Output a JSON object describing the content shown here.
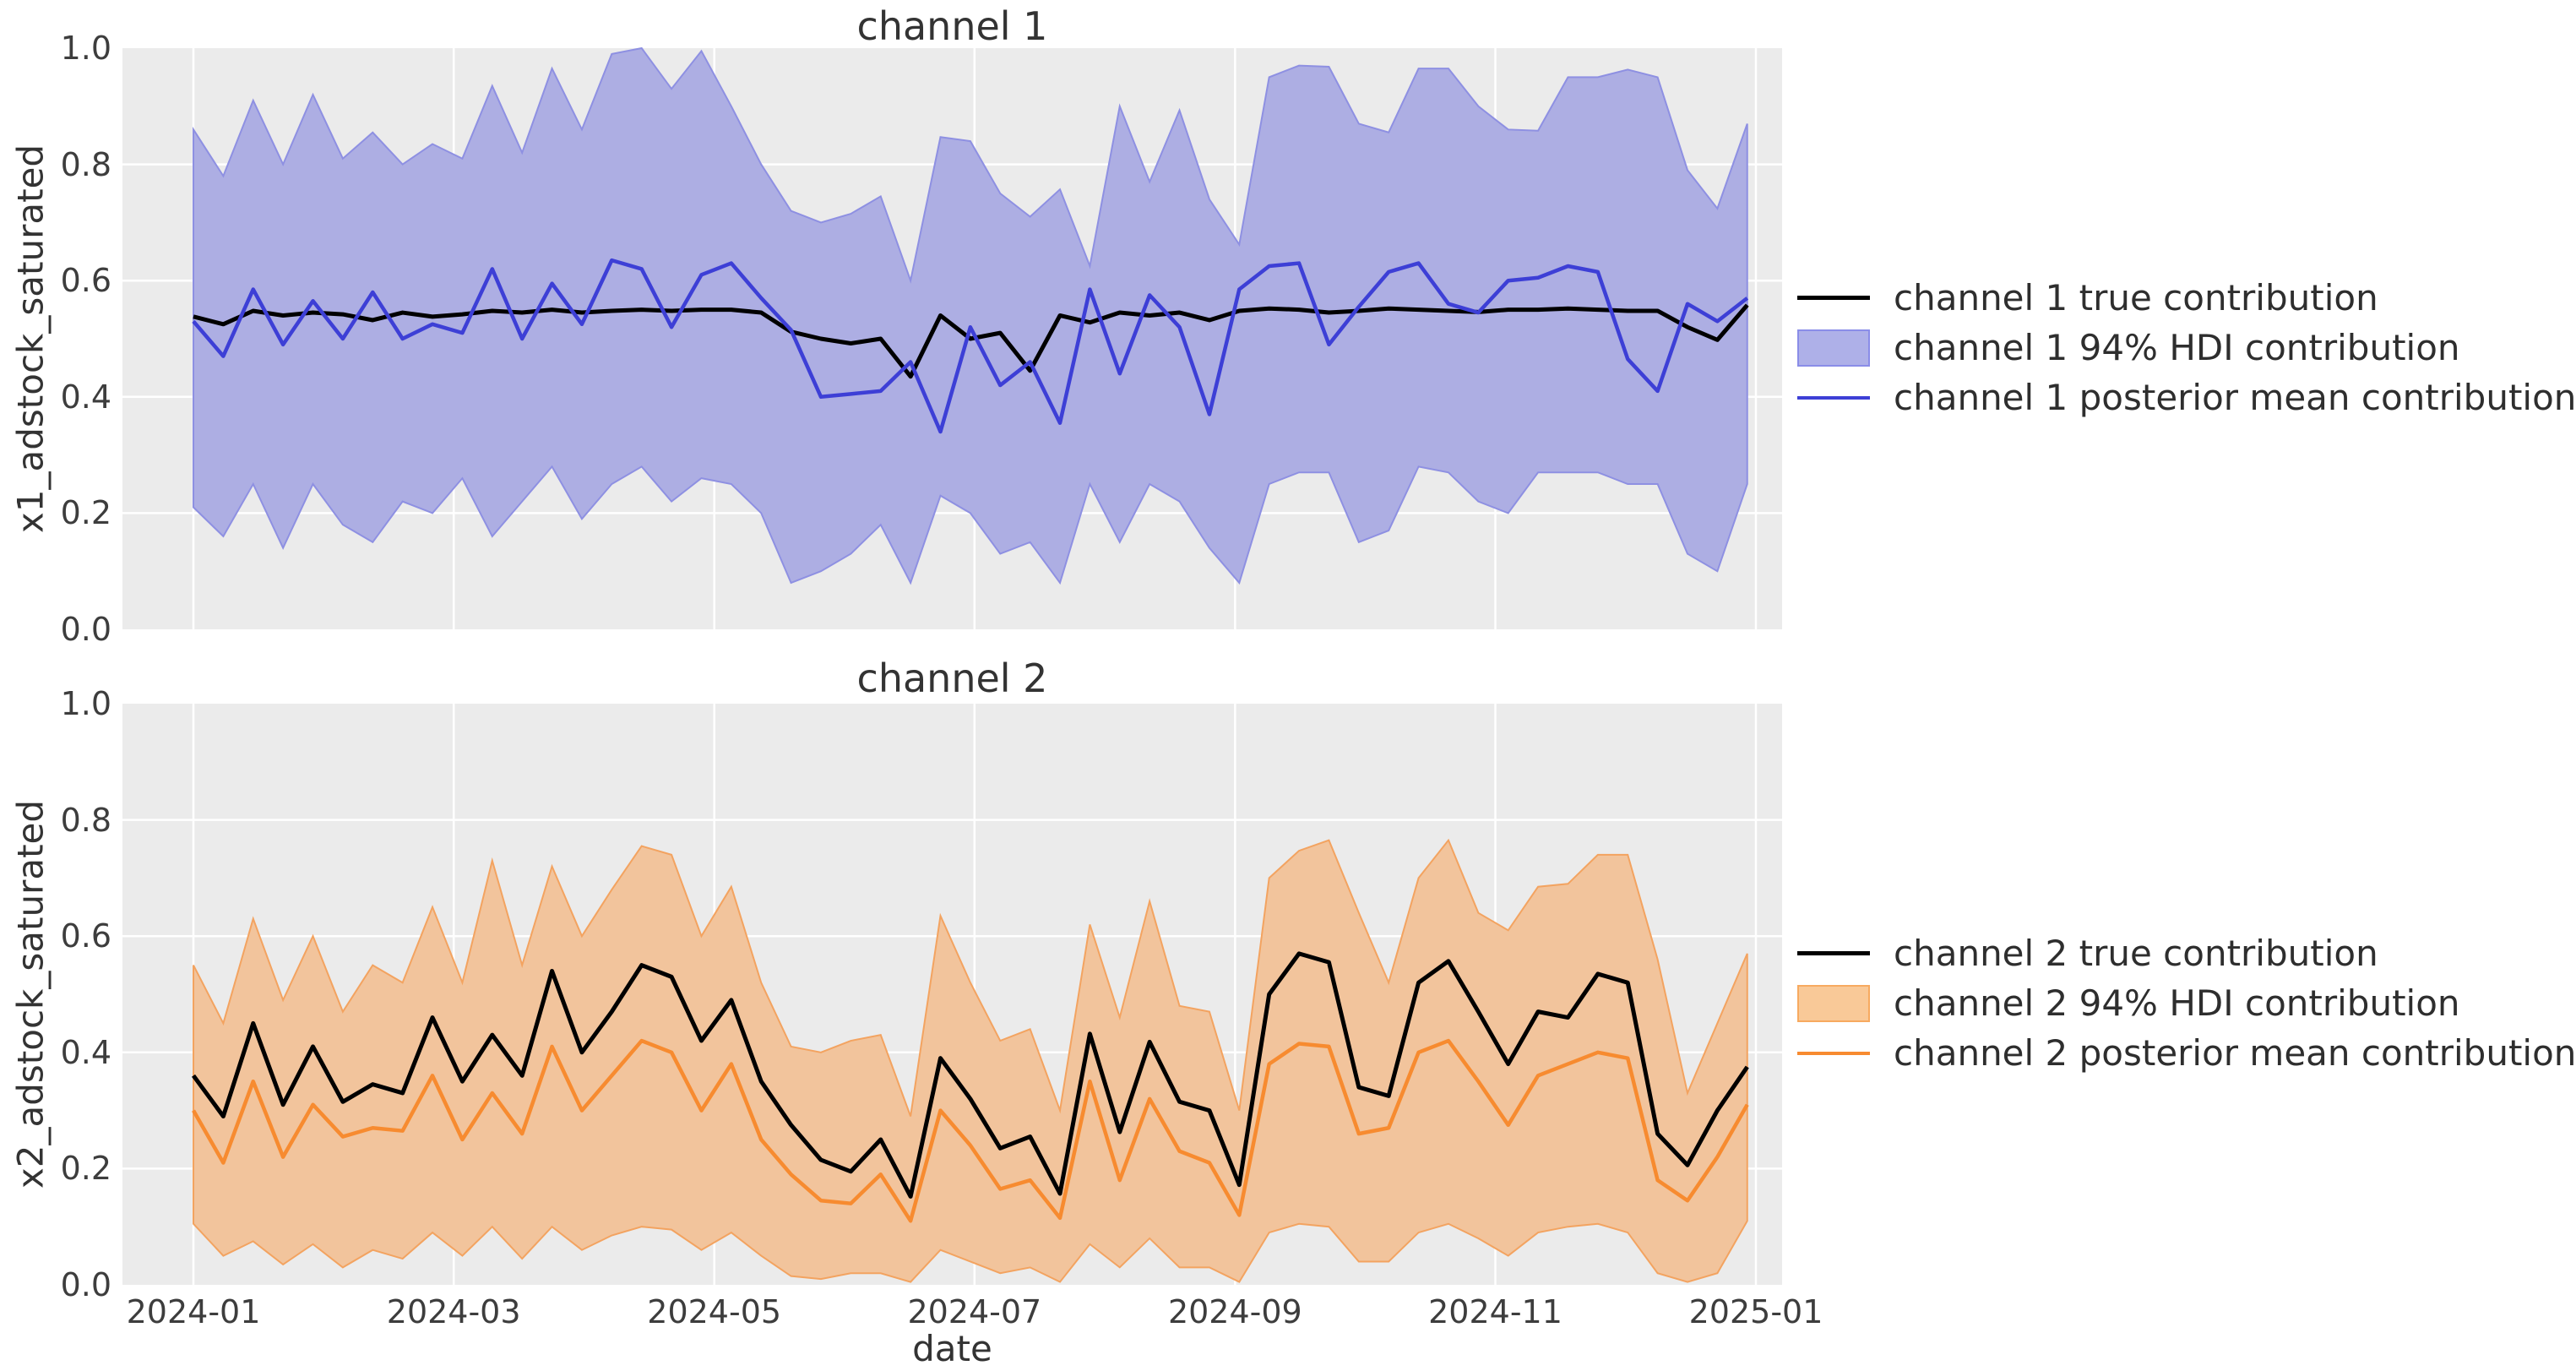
{
  "figure": {
    "background": "#ffffff",
    "plot_background": "#ebebeb",
    "grid_color": "#ffffff"
  },
  "chart_data": [
    {
      "type": "line",
      "subtype": "lines-with-hdi-band",
      "title": "channel 1",
      "ylabel": "x1_adstock_saturated",
      "xlabel": "",
      "ylim": [
        0.0,
        1.0
      ],
      "x_start": "2024-01-01",
      "x_interval_days": 7,
      "n_points": 53,
      "show_x_tick_labels": false,
      "y_gridlines": [
        0.2,
        0.4,
        0.6,
        0.8
      ],
      "y_ticks": [
        {
          "label": "0.0",
          "value": 0.0
        },
        {
          "label": "0.2",
          "value": 0.2
        },
        {
          "label": "0.4",
          "value": 0.4
        },
        {
          "label": "0.6",
          "value": 0.6
        },
        {
          "label": "0.8",
          "value": 0.8
        },
        {
          "label": "1.0",
          "value": 1.0
        }
      ],
      "x_ticks": [
        {
          "label": "2024-01",
          "week": 0
        },
        {
          "label": "2024-03",
          "week": 8.71
        },
        {
          "label": "2024-05",
          "week": 17.43
        },
        {
          "label": "2024-07",
          "week": 26.14
        },
        {
          "label": "2024-09",
          "week": 34.86
        },
        {
          "label": "2024-11",
          "week": 43.57
        },
        {
          "label": "2025-01",
          "week": 52.29
        }
      ],
      "colors": {
        "true_line": "#000000",
        "mean_line": "#3d3fd6",
        "band_fill": "#adaee3",
        "band_edge": "#8e90e2",
        "legend_patch_fill": "#aeb0e8",
        "legend_patch_edge": "#8a8de8"
      },
      "series": [
        {
          "name": "channel 1 true contribution",
          "type": "line",
          "role": "true",
          "values": [
            0.538,
            0.525,
            0.548,
            0.54,
            0.545,
            0.542,
            0.532,
            0.545,
            0.538,
            0.542,
            0.548,
            0.545,
            0.55,
            0.545,
            0.548,
            0.55,
            0.548,
            0.55,
            0.55,
            0.545,
            0.512,
            0.5,
            0.492,
            0.5,
            0.435,
            0.54,
            0.5,
            0.51,
            0.445,
            0.54,
            0.528,
            0.545,
            0.54,
            0.545,
            0.532,
            0.548,
            0.552,
            0.55,
            0.545,
            0.548,
            0.552,
            0.55,
            0.548,
            0.546,
            0.55,
            0.55,
            0.552,
            0.55,
            0.548,
            0.548,
            0.52,
            0.498,
            0.558
          ]
        },
        {
          "name": "channel 1 94% HDI contribution",
          "type": "band",
          "role": "hdi",
          "upper": [
            0.86,
            0.78,
            0.91,
            0.8,
            0.92,
            0.81,
            0.855,
            0.8,
            0.835,
            0.81,
            0.935,
            0.82,
            0.965,
            0.86,
            0.99,
            1.0,
            0.93,
            0.995,
            0.9,
            0.8,
            0.72,
            0.7,
            0.715,
            0.745,
            0.6,
            0.847,
            0.84,
            0.75,
            0.71,
            0.757,
            0.625,
            0.9,
            0.77,
            0.893,
            0.74,
            0.662,
            0.95,
            0.97,
            0.968,
            0.87,
            0.855,
            0.965,
            0.965,
            0.9,
            0.86,
            0.858,
            0.95,
            0.95,
            0.963,
            0.95,
            0.79,
            0.724,
            0.87
          ],
          "lower": [
            0.21,
            0.16,
            0.25,
            0.14,
            0.25,
            0.18,
            0.15,
            0.22,
            0.2,
            0.26,
            0.16,
            0.22,
            0.28,
            0.19,
            0.25,
            0.28,
            0.22,
            0.26,
            0.25,
            0.2,
            0.08,
            0.1,
            0.13,
            0.18,
            0.08,
            0.23,
            0.2,
            0.13,
            0.15,
            0.08,
            0.25,
            0.15,
            0.25,
            0.22,
            0.14,
            0.08,
            0.25,
            0.27,
            0.27,
            0.15,
            0.17,
            0.28,
            0.27,
            0.22,
            0.2,
            0.27,
            0.27,
            0.27,
            0.25,
            0.25,
            0.13,
            0.1,
            0.25
          ]
        },
        {
          "name": "channel 1 posterior mean contribution",
          "type": "line",
          "role": "posterior_mean",
          "values": [
            0.53,
            0.47,
            0.585,
            0.49,
            0.565,
            0.5,
            0.58,
            0.5,
            0.525,
            0.51,
            0.62,
            0.5,
            0.595,
            0.525,
            0.635,
            0.62,
            0.52,
            0.61,
            0.63,
            0.57,
            0.515,
            0.4,
            0.405,
            0.41,
            0.46,
            0.34,
            0.52,
            0.42,
            0.46,
            0.355,
            0.585,
            0.44,
            0.575,
            0.52,
            0.37,
            0.585,
            0.625,
            0.63,
            0.49,
            0.555,
            0.615,
            0.63,
            0.56,
            0.545,
            0.6,
            0.605,
            0.625,
            0.615,
            0.465,
            0.41,
            0.56,
            0.53,
            0.57
          ]
        }
      ],
      "legend": [
        {
          "label": "channel 1 true contribution",
          "swatch": "line"
        },
        {
          "label": "channel 1 94% HDI contribution",
          "swatch": "patch"
        },
        {
          "label": "channel 1 posterior mean contribution",
          "swatch": "line"
        }
      ]
    },
    {
      "type": "line",
      "subtype": "lines-with-hdi-band",
      "title": "channel 2",
      "ylabel": "x2_adstock_saturated",
      "xlabel": "date",
      "ylim": [
        0.0,
        1.0
      ],
      "x_start": "2024-01-01",
      "x_interval_days": 7,
      "n_points": 53,
      "show_x_tick_labels": true,
      "y_gridlines": [
        0.2,
        0.4,
        0.6,
        0.8
      ],
      "y_ticks": [
        {
          "label": "0.0",
          "value": 0.0
        },
        {
          "label": "0.2",
          "value": 0.2
        },
        {
          "label": "0.4",
          "value": 0.4
        },
        {
          "label": "0.6",
          "value": 0.6
        },
        {
          "label": "0.8",
          "value": 0.8
        },
        {
          "label": "1.0",
          "value": 1.0
        }
      ],
      "x_ticks": [
        {
          "label": "2024-01",
          "week": 0
        },
        {
          "label": "2024-03",
          "week": 8.71
        },
        {
          "label": "2024-05",
          "week": 17.43
        },
        {
          "label": "2024-07",
          "week": 26.14
        },
        {
          "label": "2024-09",
          "week": 34.86
        },
        {
          "label": "2024-11",
          "week": 43.57
        },
        {
          "label": "2025-01",
          "week": 52.29
        }
      ],
      "colors": {
        "true_line": "#000000",
        "mean_line": "#f78b30",
        "band_fill": "#f2c49c",
        "band_edge": "#f3a360",
        "legend_patch_fill": "#f9c998",
        "legend_patch_edge": "#f7aa60"
      },
      "series": [
        {
          "name": "channel 2 true contribution",
          "type": "line",
          "role": "true",
          "values": [
            0.36,
            0.29,
            0.45,
            0.31,
            0.41,
            0.315,
            0.345,
            0.33,
            0.46,
            0.35,
            0.43,
            0.36,
            0.54,
            0.4,
            0.47,
            0.55,
            0.53,
            0.42,
            0.49,
            0.35,
            0.275,
            0.215,
            0.195,
            0.25,
            0.152,
            0.39,
            0.32,
            0.235,
            0.255,
            0.157,
            0.432,
            0.263,
            0.418,
            0.315,
            0.3,
            0.172,
            0.5,
            0.57,
            0.555,
            0.34,
            0.325,
            0.52,
            0.557,
            0.47,
            0.38,
            0.47,
            0.46,
            0.535,
            0.52,
            0.26,
            0.206,
            0.3,
            0.375
          ]
        },
        {
          "name": "channel 2 94% HDI contribution",
          "type": "band",
          "role": "hdi",
          "upper": [
            0.55,
            0.45,
            0.63,
            0.49,
            0.6,
            0.47,
            0.55,
            0.52,
            0.65,
            0.52,
            0.73,
            0.55,
            0.72,
            0.6,
            0.68,
            0.755,
            0.74,
            0.6,
            0.685,
            0.52,
            0.41,
            0.4,
            0.42,
            0.43,
            0.29,
            0.635,
            0.52,
            0.42,
            0.44,
            0.3,
            0.62,
            0.46,
            0.66,
            0.48,
            0.47,
            0.3,
            0.7,
            0.747,
            0.765,
            0.64,
            0.52,
            0.7,
            0.765,
            0.64,
            0.61,
            0.685,
            0.69,
            0.74,
            0.74,
            0.56,
            0.33,
            0.45,
            0.57
          ],
          "lower": [
            0.105,
            0.05,
            0.075,
            0.035,
            0.07,
            0.03,
            0.06,
            0.045,
            0.09,
            0.05,
            0.1,
            0.045,
            0.1,
            0.06,
            0.085,
            0.1,
            0.095,
            0.06,
            0.09,
            0.05,
            0.015,
            0.01,
            0.02,
            0.02,
            0.005,
            0.06,
            0.04,
            0.02,
            0.03,
            0.005,
            0.07,
            0.03,
            0.08,
            0.03,
            0.03,
            0.005,
            0.09,
            0.105,
            0.1,
            0.04,
            0.04,
            0.09,
            0.105,
            0.08,
            0.05,
            0.09,
            0.1,
            0.105,
            0.09,
            0.02,
            0.005,
            0.02,
            0.11
          ]
        },
        {
          "name": "channel 2 posterior mean contribution",
          "type": "line",
          "role": "posterior_mean",
          "values": [
            0.3,
            0.21,
            0.35,
            0.22,
            0.31,
            0.255,
            0.27,
            0.265,
            0.36,
            0.25,
            0.33,
            0.26,
            0.41,
            0.3,
            0.36,
            0.42,
            0.4,
            0.3,
            0.38,
            0.25,
            0.19,
            0.145,
            0.14,
            0.19,
            0.11,
            0.3,
            0.24,
            0.165,
            0.18,
            0.115,
            0.35,
            0.18,
            0.32,
            0.23,
            0.21,
            0.12,
            0.38,
            0.415,
            0.41,
            0.26,
            0.27,
            0.4,
            0.42,
            0.35,
            0.275,
            0.36,
            0.38,
            0.4,
            0.39,
            0.18,
            0.145,
            0.22,
            0.31
          ]
        }
      ],
      "legend": [
        {
          "label": "channel 2 true contribution",
          "swatch": "line"
        },
        {
          "label": "channel 2 94% HDI contribution",
          "swatch": "patch"
        },
        {
          "label": "channel 2 posterior mean contribution",
          "swatch": "line"
        }
      ]
    }
  ]
}
